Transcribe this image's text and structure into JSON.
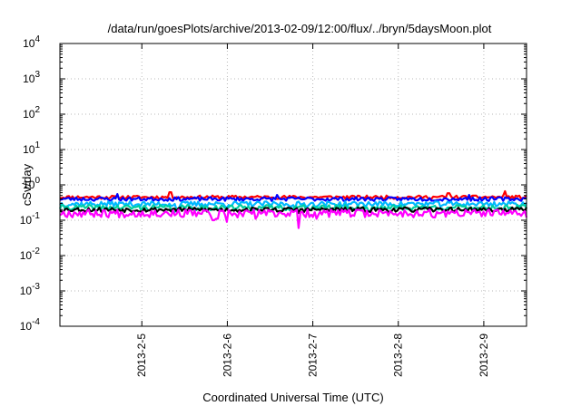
{
  "chart_data": {
    "type": "line",
    "title": "/data/run/goesPlots/archive/2013-02-09/12:00/flux/../bryn/5daysMoon.plot",
    "xlabel": "Coordinated Universal Time (UTC)",
    "ylabel": "cSv/day",
    "yscale": "log",
    "ylim": [
      0.0001,
      10000
    ],
    "xlim": [
      "2013-02-04T01:00",
      "2013-02-09T12:00"
    ],
    "y_ticks": [
      {
        "value": 0.0001,
        "base": "10",
        "exp": "-4"
      },
      {
        "value": 0.001,
        "base": "10",
        "exp": "-3"
      },
      {
        "value": 0.01,
        "base": "10",
        "exp": "-2"
      },
      {
        "value": 0.1,
        "base": "10",
        "exp": "-1"
      },
      {
        "value": 1,
        "base": "10",
        "exp": "0"
      },
      {
        "value": 10,
        "base": "10",
        "exp": "1"
      },
      {
        "value": 100,
        "base": "10",
        "exp": "2"
      },
      {
        "value": 1000,
        "base": "10",
        "exp": "3"
      },
      {
        "value": 10000,
        "base": "10",
        "exp": "4"
      }
    ],
    "x_ticks": [
      {
        "value": "2013-02-05T00:00",
        "label": "2013-2-5"
      },
      {
        "value": "2013-02-06T00:00",
        "label": "2013-2-6"
      },
      {
        "value": "2013-02-07T00:00",
        "label": "2013-2-7"
      },
      {
        "value": "2013-02-08T00:00",
        "label": "2013-2-8"
      },
      {
        "value": "2013-02-09T00:00",
        "label": "2013-2-9"
      }
    ],
    "grid": true,
    "legend": "none",
    "series": [
      {
        "color": "#ff0000",
        "level": 0.45,
        "noise": 0.05,
        "seed": 11,
        "spikes": [
          [
            "2013-02-05T08:00",
            0.62
          ],
          [
            "2013-02-08T14:00",
            0.58
          ],
          [
            "2013-02-09T06:00",
            0.66
          ]
        ]
      },
      {
        "color": "#0000ff",
        "level": 0.4,
        "noise": 0.05,
        "seed": 23,
        "spikes": [
          [
            "2013-02-04T17:00",
            0.55
          ],
          [
            "2013-02-06T14:00",
            0.52
          ],
          [
            "2013-02-08T20:00",
            0.52
          ]
        ]
      },
      {
        "color": "#00b8ff",
        "level": 0.29,
        "noise": 0.05,
        "seed": 37,
        "spikes": [
          [
            "2013-02-05T10:00",
            0.2
          ],
          [
            "2013-02-06T00:00",
            0.22
          ],
          [
            "2013-02-06T19:00",
            0.21
          ]
        ]
      },
      {
        "color": "#00d0a0",
        "level": 0.23,
        "noise": 0.04,
        "seed": 41,
        "spikes": [
          [
            "2013-02-05T09:00",
            0.17
          ],
          [
            "2013-02-07T16:00",
            0.18
          ]
        ]
      },
      {
        "color": "#000000",
        "level": 0.2,
        "noise": 0.03,
        "seed": 53,
        "spikes": [
          [
            "2013-02-06T20:00",
            0.16
          ]
        ]
      },
      {
        "color": "#ff00ff",
        "level": 0.16,
        "noise": 0.04,
        "seed": 67,
        "spikes": [
          [
            "2013-02-05T20:00",
            0.1
          ],
          [
            "2013-02-05T21:00",
            0.11
          ],
          [
            "2013-02-06T00:00",
            0.09
          ],
          [
            "2013-02-06T03:00",
            0.12
          ],
          [
            "2013-02-06T08:00",
            0.11
          ],
          [
            "2013-02-06T20:00",
            0.06
          ],
          [
            "2013-02-07T01:00",
            0.11
          ],
          [
            "2013-02-08T10:00",
            0.12
          ]
        ]
      }
    ]
  }
}
